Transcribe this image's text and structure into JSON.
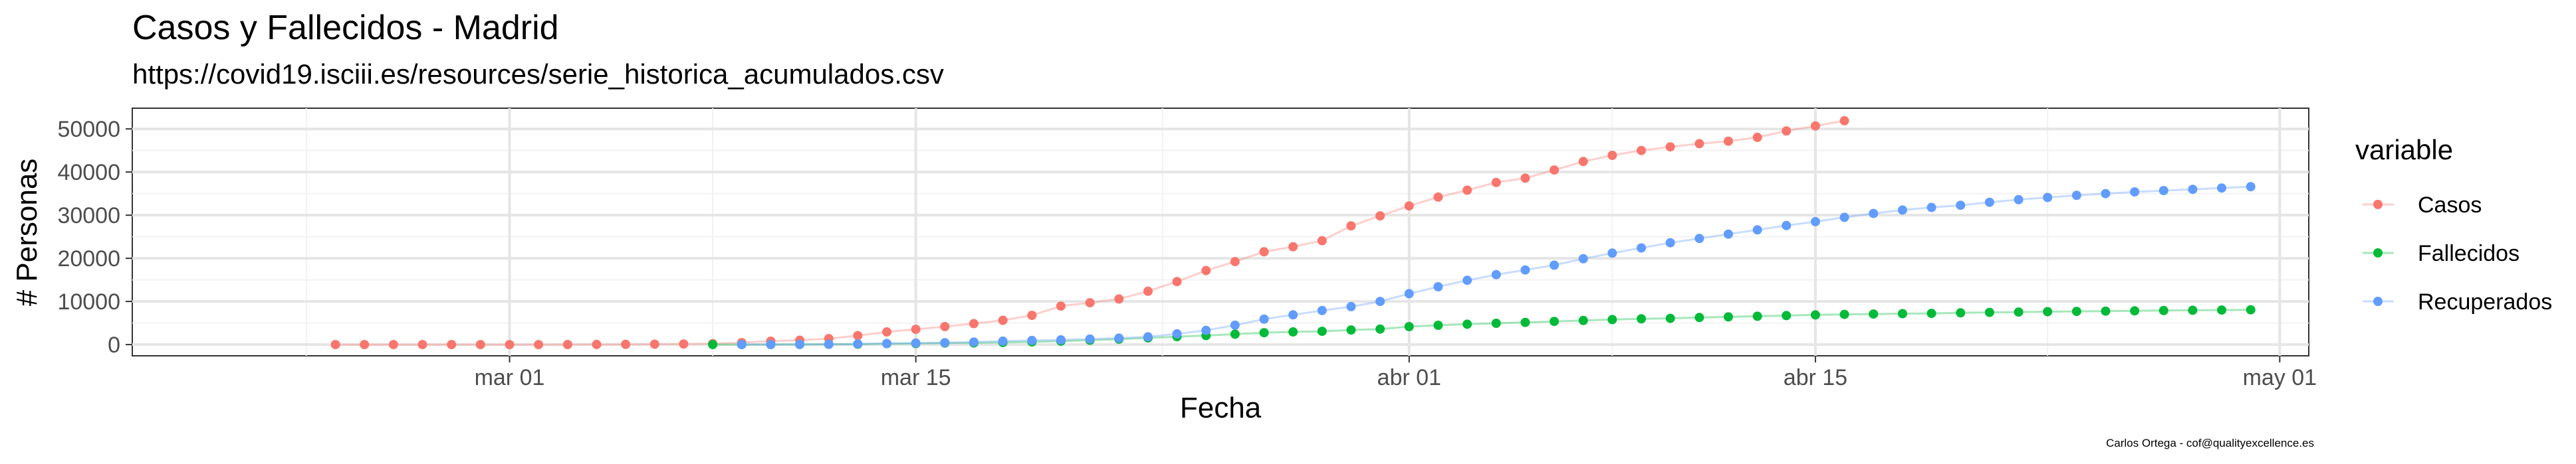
{
  "chart_data": {
    "type": "line",
    "title": "Casos y Fallecidos - Madrid",
    "subtitle": "https://covid19.isciii.es/resources/serie_historica_acumulados.csv",
    "caption": "Carlos Ortega - cof@qualityexcellence.es",
    "xlabel": "Fecha",
    "ylabel": "# Personas",
    "x_ticks": [
      "mar 01",
      "mar 15",
      "abr 01",
      "abr 15",
      "may 01"
    ],
    "y_ticks": [
      "0",
      "10000",
      "20000",
      "30000",
      "40000",
      "50000"
    ],
    "xlim": [
      "2020-02-17",
      "2020-05-02"
    ],
    "ylim": [
      -2600,
      54800
    ],
    "grid": true,
    "legend_title": "variable",
    "legend_position": "right",
    "series": [
      {
        "name": "Casos",
        "color": "#F8766D",
        "points": [
          [
            "2020-02-24",
            0
          ],
          [
            "2020-02-25",
            0
          ],
          [
            "2020-02-26",
            0
          ],
          [
            "2020-02-27",
            0
          ],
          [
            "2020-02-28",
            0
          ],
          [
            "2020-02-29",
            0
          ],
          [
            "2020-03-01",
            1
          ],
          [
            "2020-03-02",
            6
          ],
          [
            "2020-03-03",
            10
          ],
          [
            "2020-03-04",
            27
          ],
          [
            "2020-03-05",
            41
          ],
          [
            "2020-03-06",
            90
          ],
          [
            "2020-03-07",
            137
          ],
          [
            "2020-03-08",
            202
          ],
          [
            "2020-03-09",
            469
          ],
          [
            "2020-03-10",
            782
          ],
          [
            "2020-03-11",
            1024
          ],
          [
            "2020-03-12",
            1388
          ],
          [
            "2020-03-13",
            2078
          ],
          [
            "2020-03-14",
            2940
          ],
          [
            "2020-03-15",
            3544
          ],
          [
            "2020-03-16",
            4165
          ],
          [
            "2020-03-17",
            4871
          ],
          [
            "2020-03-18",
            5637
          ],
          [
            "2020-03-19",
            6777
          ],
          [
            "2020-03-20",
            8921
          ],
          [
            "2020-03-21",
            9702
          ],
          [
            "2020-03-22",
            10575
          ],
          [
            "2020-03-23",
            12352
          ],
          [
            "2020-03-24",
            14597
          ],
          [
            "2020-03-25",
            17166
          ],
          [
            "2020-03-26",
            19243
          ],
          [
            "2020-03-27",
            21520
          ],
          [
            "2020-03-28",
            22677
          ],
          [
            "2020-03-29",
            24090
          ],
          [
            "2020-03-30",
            27509
          ],
          [
            "2020-03-31",
            29840
          ],
          [
            "2020-04-01",
            32155
          ],
          [
            "2020-04-02",
            34188
          ],
          [
            "2020-04-03",
            35800
          ],
          [
            "2020-04-04",
            37584
          ],
          [
            "2020-04-05",
            38580
          ],
          [
            "2020-04-06",
            40469
          ],
          [
            "2020-04-07",
            42450
          ],
          [
            "2020-04-08",
            43877
          ],
          [
            "2020-04-09",
            45000
          ],
          [
            "2020-04-10",
            45849
          ],
          [
            "2020-04-11",
            46587
          ],
          [
            "2020-04-12",
            47146
          ],
          [
            "2020-04-13",
            48048
          ],
          [
            "2020-04-14",
            49526
          ],
          [
            "2020-04-15",
            50694
          ],
          [
            "2020-04-16",
            51896
          ]
        ]
      },
      {
        "name": "Fallecidos",
        "color": "#00BA38",
        "points": [
          [
            "2020-03-08",
            0
          ],
          [
            "2020-03-09",
            8
          ],
          [
            "2020-03-10",
            21
          ],
          [
            "2020-03-11",
            31
          ],
          [
            "2020-03-12",
            56
          ],
          [
            "2020-03-13",
            86
          ],
          [
            "2020-03-14",
            213
          ],
          [
            "2020-03-15",
            253
          ],
          [
            "2020-03-16",
            355
          ],
          [
            "2020-03-17",
            390
          ],
          [
            "2020-03-18",
            498
          ],
          [
            "2020-03-19",
            628
          ],
          [
            "2020-03-20",
            804
          ],
          [
            "2020-03-21",
            1021
          ],
          [
            "2020-03-22",
            1263
          ],
          [
            "2020-03-23",
            1535
          ],
          [
            "2020-03-24",
            1825
          ],
          [
            "2020-03-25",
            2090
          ],
          [
            "2020-03-26",
            2412
          ],
          [
            "2020-03-27",
            2757
          ],
          [
            "2020-03-28",
            2941
          ],
          [
            "2020-03-29",
            3082
          ],
          [
            "2020-03-30",
            3392
          ],
          [
            "2020-03-31",
            3603
          ],
          [
            "2020-04-01",
            4175
          ],
          [
            "2020-04-02",
            4483
          ],
          [
            "2020-04-03",
            4723
          ],
          [
            "2020-04-04",
            4941
          ],
          [
            "2020-04-05",
            5136
          ],
          [
            "2020-04-06",
            5371
          ],
          [
            "2020-04-07",
            5586
          ],
          [
            "2020-04-08",
            5800
          ],
          [
            "2020-04-09",
            5972
          ],
          [
            "2020-04-10",
            6084
          ],
          [
            "2020-04-11",
            6278
          ],
          [
            "2020-04-12",
            6423
          ],
          [
            "2020-04-13",
            6568
          ],
          [
            "2020-04-14",
            6724
          ],
          [
            "2020-04-15",
            6877
          ],
          [
            "2020-04-16",
            7000
          ],
          [
            "2020-04-17",
            7084
          ],
          [
            "2020-04-18",
            7176
          ],
          [
            "2020-04-19",
            7239
          ],
          [
            "2020-04-20",
            7351
          ],
          [
            "2020-04-21",
            7460
          ],
          [
            "2020-04-22",
            7548
          ],
          [
            "2020-04-23",
            7628
          ],
          [
            "2020-04-24",
            7691
          ],
          [
            "2020-04-25",
            7750
          ],
          [
            "2020-04-26",
            7820
          ],
          [
            "2020-04-27",
            7893
          ],
          [
            "2020-04-28",
            7950
          ],
          [
            "2020-04-29",
            8010
          ],
          [
            "2020-04-30",
            8060
          ]
        ]
      },
      {
        "name": "Recuperados",
        "color": "#619CFF",
        "points": [
          [
            "2020-03-09",
            0
          ],
          [
            "2020-03-10",
            10
          ],
          [
            "2020-03-11",
            40
          ],
          [
            "2020-03-12",
            80
          ],
          [
            "2020-03-13",
            150
          ],
          [
            "2020-03-14",
            250
          ],
          [
            "2020-03-15",
            350
          ],
          [
            "2020-03-16",
            450
          ],
          [
            "2020-03-17",
            600
          ],
          [
            "2020-03-18",
            800
          ],
          [
            "2020-03-19",
            950
          ],
          [
            "2020-03-20",
            1100
          ],
          [
            "2020-03-21",
            1300
          ],
          [
            "2020-03-22",
            1500
          ],
          [
            "2020-03-23",
            1800
          ],
          [
            "2020-03-24",
            2500
          ],
          [
            "2020-03-25",
            3300
          ],
          [
            "2020-03-26",
            4500
          ],
          [
            "2020-03-27",
            5900
          ],
          [
            "2020-03-28",
            6900
          ],
          [
            "2020-03-29",
            7900
          ],
          [
            "2020-03-30",
            8800
          ],
          [
            "2020-03-31",
            10000
          ],
          [
            "2020-04-01",
            11800
          ],
          [
            "2020-04-02",
            13400
          ],
          [
            "2020-04-03",
            14900
          ],
          [
            "2020-04-04",
            16200
          ],
          [
            "2020-04-05",
            17300
          ],
          [
            "2020-04-06",
            18400
          ],
          [
            "2020-04-07",
            19900
          ],
          [
            "2020-04-08",
            21200
          ],
          [
            "2020-04-09",
            22400
          ],
          [
            "2020-04-10",
            23600
          ],
          [
            "2020-04-11",
            24600
          ],
          [
            "2020-04-12",
            25600
          ],
          [
            "2020-04-13",
            26600
          ],
          [
            "2020-04-14",
            27600
          ],
          [
            "2020-04-15",
            28500
          ],
          [
            "2020-04-16",
            29500
          ],
          [
            "2020-04-17",
            30400
          ],
          [
            "2020-04-18",
            31200
          ],
          [
            "2020-04-19",
            31800
          ],
          [
            "2020-04-20",
            32300
          ],
          [
            "2020-04-21",
            33000
          ],
          [
            "2020-04-22",
            33600
          ],
          [
            "2020-04-23",
            34100
          ],
          [
            "2020-04-24",
            34600
          ],
          [
            "2020-04-25",
            35000
          ],
          [
            "2020-04-26",
            35400
          ],
          [
            "2020-04-27",
            35700
          ],
          [
            "2020-04-28",
            36000
          ],
          [
            "2020-04-29",
            36300
          ],
          [
            "2020-04-30",
            36600
          ]
        ]
      }
    ]
  }
}
